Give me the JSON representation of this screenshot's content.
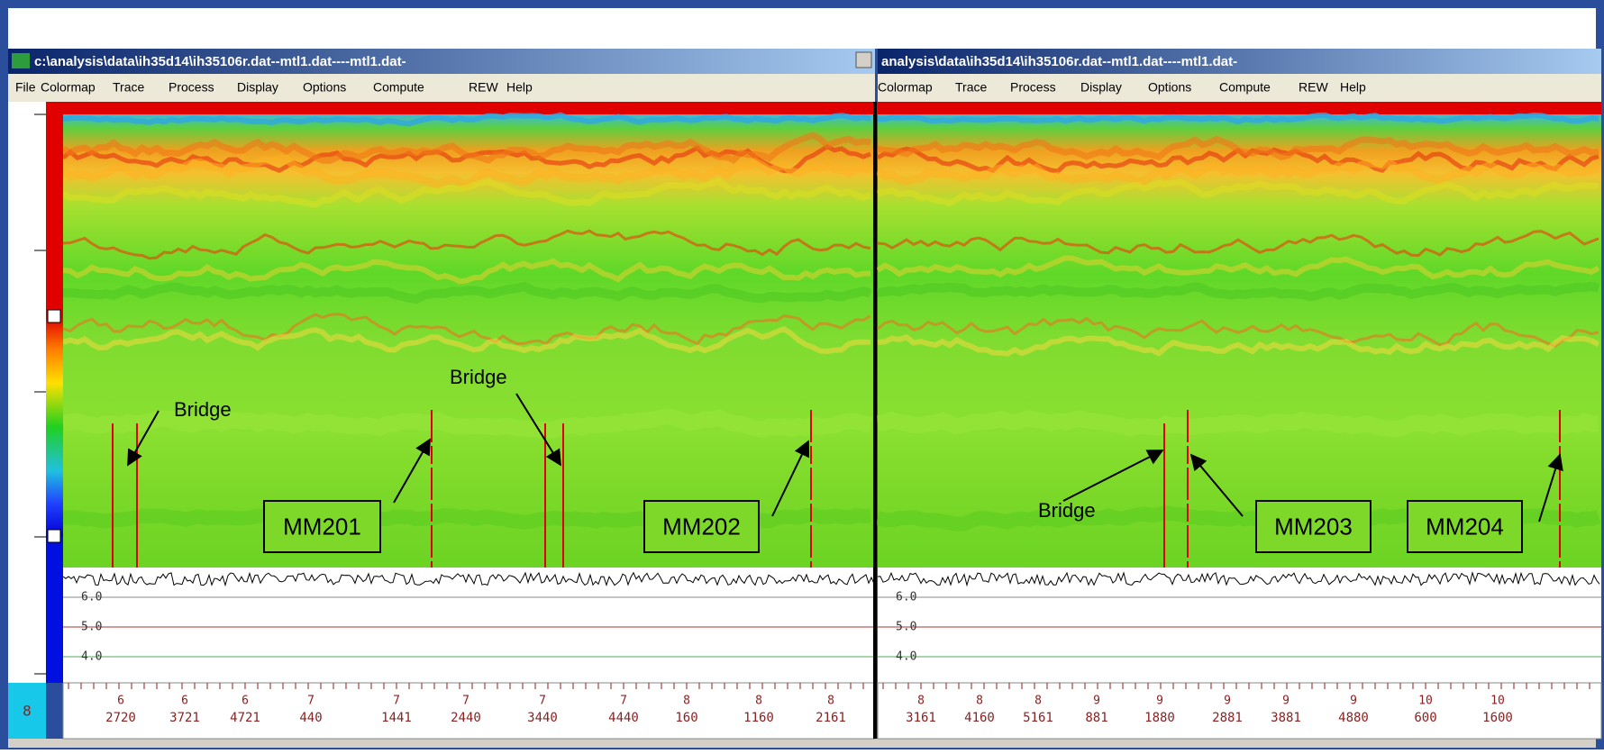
{
  "left_window": {
    "title": "c:\\analysis\\data\\ih35d14\\ih35106r.dat--mtl1.dat----mtl1.dat-",
    "menu": [
      "File",
      "Colormap",
      "Trace",
      "Process",
      "Display",
      "Options",
      "Compute",
      "REW",
      "Help"
    ],
    "trace_labels": [
      "6.0",
      "5.0",
      "4.0"
    ],
    "x_labels": [
      {
        "top": "6",
        "bottom": "2720"
      },
      {
        "top": "6",
        "bottom": "3721"
      },
      {
        "top": "6",
        "bottom": "4721"
      },
      {
        "top": "7",
        "bottom": "440"
      },
      {
        "top": "7",
        "bottom": "1441"
      },
      {
        "top": "7",
        "bottom": "2440"
      },
      {
        "top": "7",
        "bottom": "3440"
      },
      {
        "top": "7",
        "bottom": "4440"
      },
      {
        "top": "8",
        "bottom": "160"
      },
      {
        "top": "8",
        "bottom": "1160"
      },
      {
        "top": "8",
        "bottom": "2161"
      }
    ],
    "annotations": [
      "Bridge",
      "Bridge"
    ],
    "markers": [
      "MM201",
      "MM202"
    ]
  },
  "right_window": {
    "title": "analysis\\data\\ih35d14\\ih35106r.dat--mtl1.dat----mtl1.dat-",
    "menu": [
      "Colormap",
      "Trace",
      "Process",
      "Display",
      "Options",
      "Compute",
      "REW",
      "Help"
    ],
    "trace_labels": [
      "6.0",
      "5.0",
      "4.0"
    ],
    "x_labels": [
      {
        "top": "8",
        "bottom": "3161"
      },
      {
        "top": "8",
        "bottom": "4160"
      },
      {
        "top": "8",
        "bottom": "5161"
      },
      {
        "top": "9",
        "bottom": "881"
      },
      {
        "top": "9",
        "bottom": "1880"
      },
      {
        "top": "9",
        "bottom": "2881"
      },
      {
        "top": "9",
        "bottom": "3881"
      },
      {
        "top": "9",
        "bottom": "4880"
      },
      {
        "top": "10",
        "bottom": "600"
      },
      {
        "top": "10",
        "bottom": "1600"
      }
    ],
    "annotations": [
      "Bridge"
    ],
    "markers": [
      "MM203",
      "MM204"
    ]
  },
  "corner_label": "8"
}
